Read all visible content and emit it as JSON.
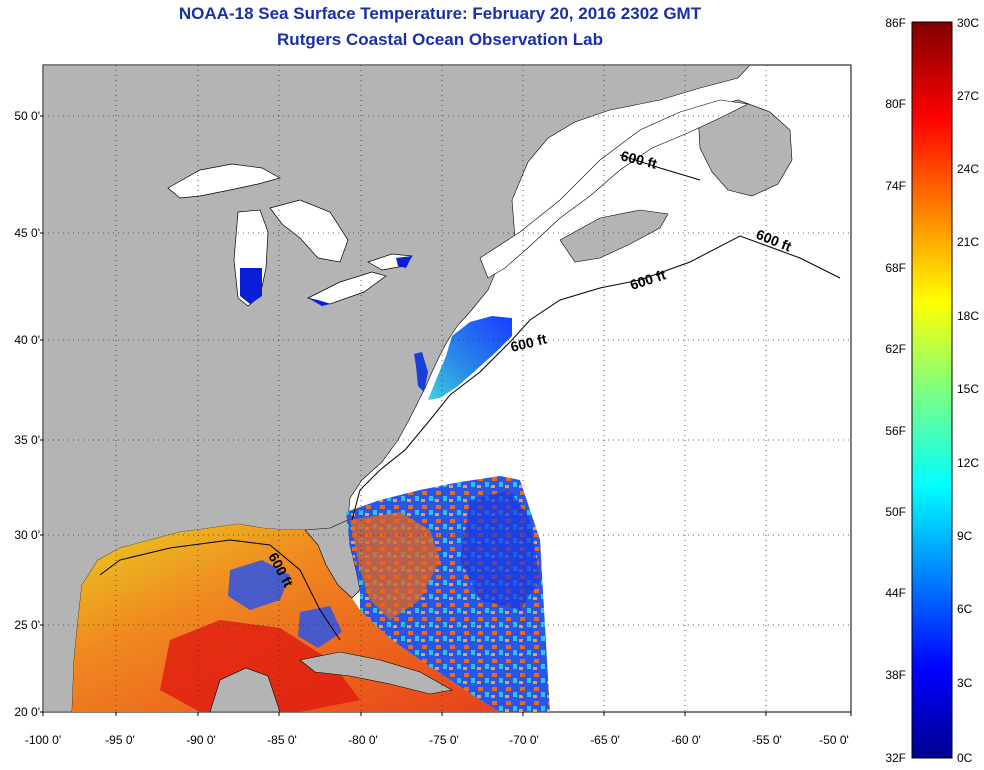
{
  "title": "NOAA-18 Sea Surface Temperature:  February 20, 2016 2302 GMT",
  "subtitle": "Rutgers Coastal Ocean Observation Lab",
  "lat_labels": [
    "50 0'",
    "45 0'",
    "40 0'",
    "35 0'",
    "30 0'",
    "25 0'",
    "20 0'"
  ],
  "lon_labels": [
    "-100 0'",
    "-95 0'",
    "-90 0'",
    "-85 0'",
    "-80 0'",
    "-75 0'",
    "-70 0'",
    "-65 0'",
    "-60 0'",
    "-55 0'",
    "-50 0'"
  ],
  "contour_labels": [
    "600 ft",
    "600 ft",
    "600 ft",
    "600 ft",
    "600 ft"
  ],
  "colorbar": {
    "f_labels": [
      "86F",
      "80F",
      "74F",
      "68F",
      "62F",
      "56F",
      "50F",
      "44F",
      "38F",
      "32F"
    ],
    "c_labels": [
      "30C",
      "27C",
      "24C",
      "21C",
      "18C",
      "15C",
      "12C",
      "9C",
      "6C",
      "3C",
      "0C"
    ]
  },
  "colors": {
    "land": "#b4b4b4",
    "title": "#1a2fa8",
    "cloud": "#ffffff"
  }
}
